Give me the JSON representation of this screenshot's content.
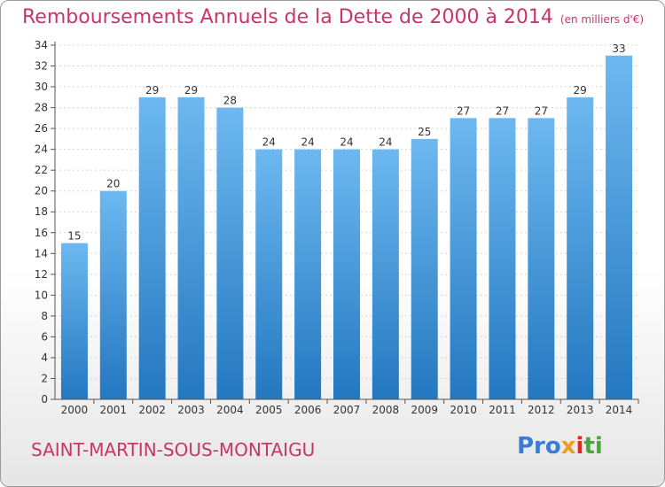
{
  "title": "Remboursements Annuels de la Dette de 2000 à 2014",
  "unit": "(en milliers d'€)",
  "city": "SAINT-MARTIN-SOUS-MONTAIGU",
  "logo": {
    "p1": "Pro",
    "p2": "x",
    "p3": "i",
    "p4": "ti"
  },
  "colors": {
    "bar_light": "#6db8f0",
    "bar_dark": "#2478c0",
    "title": "#c8356a"
  },
  "chart_data": {
    "type": "bar",
    "title": "Remboursements Annuels de la Dette de 2000 à 2014",
    "subtitle": "(en milliers d'€)",
    "categories": [
      "2000",
      "2001",
      "2002",
      "2003",
      "2004",
      "2005",
      "2006",
      "2007",
      "2008",
      "2009",
      "2010",
      "2011",
      "2012",
      "2013",
      "2014"
    ],
    "values": [
      15,
      20,
      29,
      29,
      28,
      24,
      24,
      24,
      24,
      25,
      27,
      27,
      27,
      29,
      33
    ],
    "ylim": [
      0,
      34
    ],
    "yticks": [
      0,
      2,
      4,
      6,
      8,
      10,
      12,
      14,
      16,
      18,
      20,
      22,
      24,
      26,
      28,
      30,
      32,
      34
    ],
    "grid": true,
    "xlabel": "",
    "ylabel": ""
  }
}
